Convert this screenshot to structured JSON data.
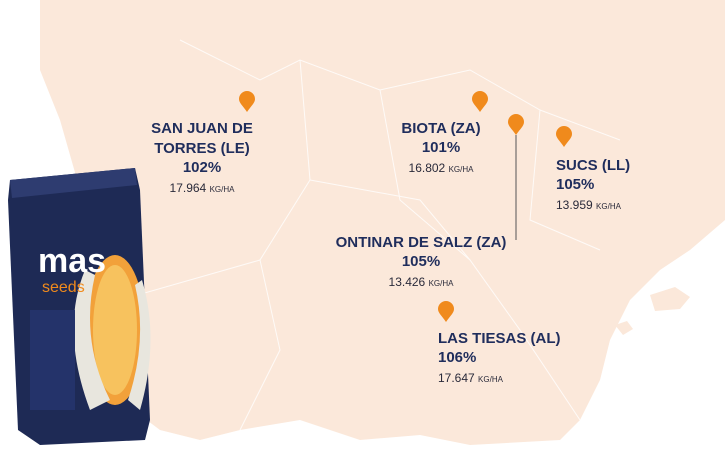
{
  "bag": {
    "brand": "mas",
    "sub": "seeds"
  },
  "locations": [
    {
      "name_lines": [
        "SAN JUAN DE",
        "TORRES (LE)"
      ],
      "percent": "102%",
      "yield": "17.964",
      "unit": "KG/HA"
    },
    {
      "name_lines": [
        "BIOTA (ZA)"
      ],
      "percent": "101%",
      "yield": "16.802",
      "unit": "KG/HA"
    },
    {
      "name_lines": [
        "SUCS (LL)"
      ],
      "percent": "105%",
      "yield": "13.959",
      "unit": "KG/HA"
    },
    {
      "name_lines": [
        "ONTINAR DE SALZ (ZA)"
      ],
      "percent": "105%",
      "yield": "13.426",
      "unit": "KG/HA"
    },
    {
      "name_lines": [
        "LAS TIESAS (AL)"
      ],
      "percent": "106%",
      "yield": "17.647",
      "unit": "KG/HA"
    }
  ]
}
